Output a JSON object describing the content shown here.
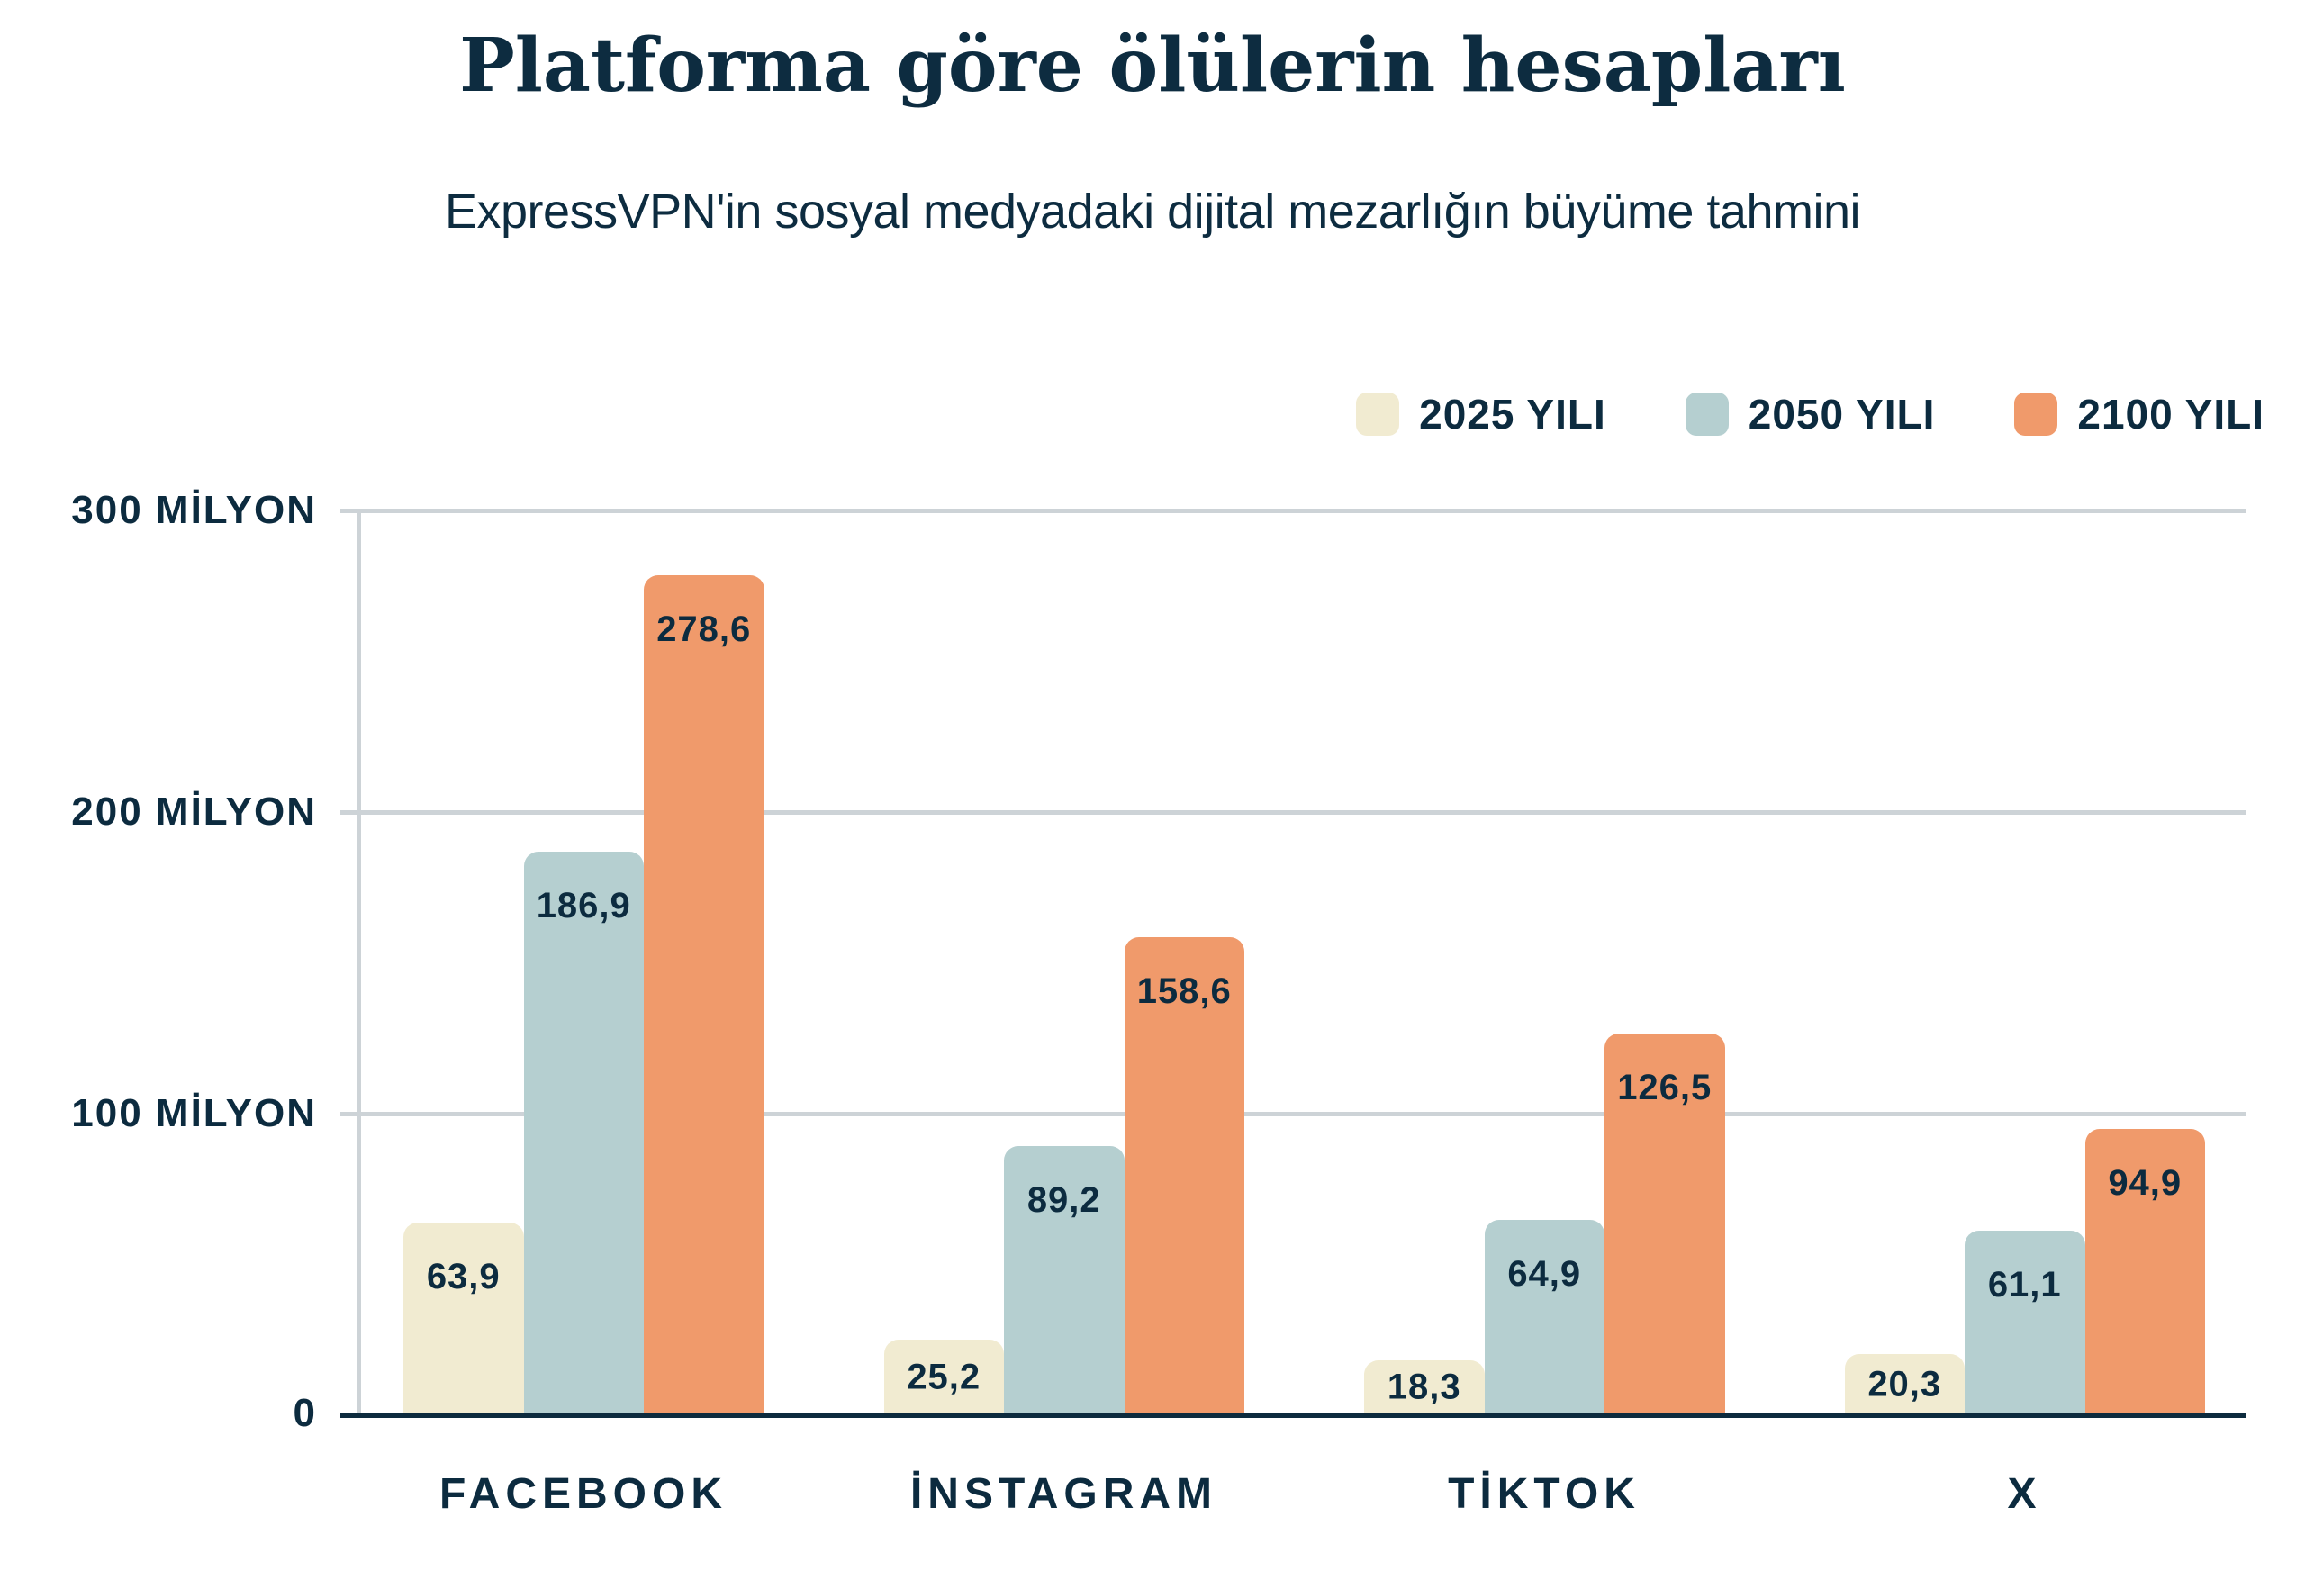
{
  "title": "Platforma göre ölülerin hesapları",
  "subtitle": "ExpressVPN'in sosyal medyadaki dijital mezarlığın büyüme tahmini",
  "colors": {
    "text_navy": "#0c2b3f",
    "baseline_navy": "#0d2b3e",
    "gridline_gray": "#cdd3d7",
    "background": "#ffffff",
    "series_2025": "#f1ebd1",
    "series_2050": "#b5cfd0",
    "series_2100": "#f09a6b"
  },
  "legend": {
    "items": [
      {
        "label": "2025 YILI",
        "color": "#f1ebd1"
      },
      {
        "label": "2050 YILI",
        "color": "#b5cfd0"
      },
      {
        "label": "2100 YILI",
        "color": "#f09a6b"
      }
    ]
  },
  "y_axis": {
    "tick_labels": [
      "300 MİLYON",
      "200 MİLYON",
      "100 MİLYON",
      "0"
    ],
    "unit": "MİLYON"
  },
  "chart_data": {
    "type": "bar",
    "title": "Platforma göre ölülerin hesapları",
    "subtitle": "ExpressVPN'in sosyal medyadaki dijital mezarlığın büyüme tahmini",
    "categories": [
      "FACEBOOK",
      "İNSTAGRAM",
      "TİKTOK",
      "X"
    ],
    "series": [
      {
        "name": "2025 YILI",
        "color": "#f1ebd1",
        "values": [
          63.9,
          25.2,
          18.3,
          20.3
        ],
        "value_labels": [
          "63,9",
          "25,2",
          "18,3",
          "20,3"
        ]
      },
      {
        "name": "2050 YILI",
        "color": "#b5cfd0",
        "values": [
          186.9,
          89.2,
          64.9,
          61.1
        ],
        "value_labels": [
          "186,9",
          "89,2",
          "64,9",
          "61,1"
        ]
      },
      {
        "name": "2100 YILI",
        "color": "#f09a6b",
        "values": [
          278.6,
          158.6,
          126.5,
          94.9
        ],
        "value_labels": [
          "278,6",
          "158,6",
          "126,5",
          "94,9"
        ]
      }
    ],
    "ylim": [
      0,
      300
    ],
    "gridlines_at": [
      100,
      200,
      300
    ],
    "grid": true,
    "legend_position": "top-right"
  }
}
